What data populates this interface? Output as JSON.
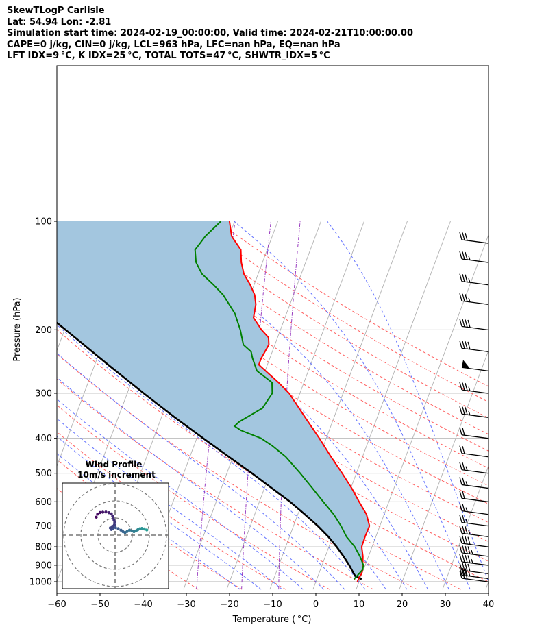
{
  "header": {
    "line1": "SkewTLogP Carlisle",
    "line2": "Lat: 54.94   Lon: -2.81",
    "line3": "Simulation start time: 2024-02-19_00:00:00, Valid time: 2024-02-21T10:00:00.00",
    "line4": "CAPE=0 j/kg, CIN=0 j/kg, LCL=963 hPa, LFC=nan hPa, EQ=nan hPa",
    "line5": "LFT IDX=9 °C, K IDX=25 °C, TOTAL TOTS=47 °C, SHWTR_IDX=5 °C"
  },
  "colors": {
    "temperature": "#ff0000",
    "dewpoint": "#008000",
    "parcel": "#000000",
    "cape_fill": "#a3c6df",
    "dry_adiabat": "#ff6060",
    "moist_adiabat": "#4a5cff",
    "mixing_ratio": "#9a3ec0",
    "isotherm": "#b0b0b0",
    "isobar": "#b0b0b0"
  },
  "chart_data": [
    {
      "type": "line",
      "subtype": "skew-T log-P diagram",
      "xlabel": "Temperature ( °C)",
      "ylabel": "Pressure (hPa)",
      "xlim": [
        -60,
        40
      ],
      "ylim": [
        1050,
        100
      ],
      "y_scale": "log",
      "x_ticks": [
        -60,
        -50,
        -40,
        -30,
        -20,
        -10,
        0,
        10,
        20,
        30,
        40
      ],
      "y_ticks": [
        1000,
        900,
        800,
        700,
        600,
        500,
        400,
        300,
        200,
        100
      ],
      "grid": true,
      "series": [
        {
          "key": "temperature",
          "points": [
            [
              1000,
              9.6
            ],
            [
              970,
              9.7
            ],
            [
              950,
              9.9
            ],
            [
              925,
              9.8
            ],
            [
              900,
              9.4
            ],
            [
              870,
              9.0
            ],
            [
              850,
              8.7
            ],
            [
              800,
              7.6
            ],
            [
              750,
              7.5
            ],
            [
              700,
              7.6
            ],
            [
              650,
              5.9
            ],
            [
              600,
              3.1
            ],
            [
              550,
              0.2
            ],
            [
              500,
              -3.3
            ],
            [
              450,
              -7.3
            ],
            [
              400,
              -11.6
            ],
            [
              350,
              -16.7
            ],
            [
              300,
              -22.5
            ],
            [
              280,
              -25.9
            ],
            [
              260,
              -29.9
            ],
            [
              250,
              -32.0
            ],
            [
              240,
              -32.0
            ],
            [
              230,
              -31.7
            ],
            [
              220,
              -31.4
            ],
            [
              210,
              -32.1
            ],
            [
              200,
              -34.4
            ],
            [
              185,
              -37.3
            ],
            [
              170,
              -37.9
            ],
            [
              160,
              -39.0
            ],
            [
              150,
              -40.9
            ],
            [
              140,
              -43.3
            ],
            [
              130,
              -44.9
            ],
            [
              120,
              -46.1
            ],
            [
              110,
              -49.4
            ],
            [
              100,
              -51.2
            ]
          ]
        },
        {
          "key": "dewpoint",
          "points": [
            [
              985,
              8.6
            ],
            [
              950,
              9.3
            ],
            [
              925,
              9.8
            ],
            [
              900,
              9.6
            ],
            [
              850,
              8.0
            ],
            [
              800,
              6.0
            ],
            [
              750,
              3.2
            ],
            [
              700,
              1.0
            ],
            [
              650,
              -1.7
            ],
            [
              600,
              -5.2
            ],
            [
              550,
              -8.9
            ],
            [
              500,
              -13.0
            ],
            [
              450,
              -17.8
            ],
            [
              420,
              -21.8
            ],
            [
              400,
              -25.1
            ],
            [
              380,
              -30.5
            ],
            [
              370,
              -32.3
            ],
            [
              360,
              -31.6
            ],
            [
              330,
              -27.4
            ],
            [
              300,
              -26.4
            ],
            [
              280,
              -27.4
            ],
            [
              260,
              -31.9
            ],
            [
              240,
              -34.0
            ],
            [
              230,
              -34.9
            ],
            [
              220,
              -37.3
            ],
            [
              200,
              -39.3
            ],
            [
              180,
              -42.0
            ],
            [
              160,
              -46.3
            ],
            [
              150,
              -49.4
            ],
            [
              140,
              -53.0
            ],
            [
              130,
              -55.4
            ],
            [
              120,
              -56.7
            ],
            [
              110,
              -55.5
            ],
            [
              100,
              -53.2
            ]
          ]
        },
        {
          "key": "parcel",
          "points": [
            [
              985,
              10.4
            ],
            [
              963,
              8.6
            ],
            [
              950,
              8.1
            ],
            [
              900,
              6.3
            ],
            [
              850,
              4.2
            ],
            [
              800,
              1.8
            ],
            [
              750,
              -1.0
            ],
            [
              700,
              -4.4
            ],
            [
              650,
              -8.4
            ],
            [
              600,
              -12.9
            ],
            [
              550,
              -18.3
            ],
            [
              500,
              -24.2
            ],
            [
              450,
              -31.0
            ],
            [
              400,
              -38.5
            ],
            [
              350,
              -46.9
            ],
            [
              300,
              -56.2
            ],
            [
              250,
              -66.9
            ],
            [
              200,
              -79.8
            ],
            [
              150,
              -96.5
            ],
            [
              100,
              -120.0
            ]
          ]
        }
      ],
      "wind_barbs_kt": [
        {
          "p": 1000,
          "speed": 30
        },
        {
          "p": 980,
          "speed": 35
        },
        {
          "p": 950,
          "speed": 40
        },
        {
          "p": 900,
          "speed": 45
        },
        {
          "p": 850,
          "speed": 45
        },
        {
          "p": 800,
          "speed": 40
        },
        {
          "p": 750,
          "speed": 35
        },
        {
          "p": 700,
          "speed": 25
        },
        {
          "p": 650,
          "speed": 25
        },
        {
          "p": 600,
          "speed": 20
        },
        {
          "p": 550,
          "speed": 25
        },
        {
          "p": 500,
          "speed": 25
        },
        {
          "p": 450,
          "speed": 20
        },
        {
          "p": 400,
          "speed": 20
        },
        {
          "p": 350,
          "speed": 35
        },
        {
          "p": 300,
          "speed": 35
        },
        {
          "p": 260,
          "speed": 50
        },
        {
          "p": 230,
          "speed": 40
        },
        {
          "p": 200,
          "speed": 40
        },
        {
          "p": 170,
          "speed": 35
        },
        {
          "p": 150,
          "speed": 35
        },
        {
          "p": 130,
          "speed": 35
        },
        {
          "p": 115,
          "speed": 30
        }
      ]
    },
    {
      "type": "scatter",
      "subtype": "hodograph",
      "title": "Wind Profile",
      "subtitle": "10m/s increment",
      "rings": [
        10,
        20,
        30
      ],
      "xlim": [
        -30,
        30
      ],
      "ylim": [
        -30,
        30
      ],
      "points_uv": [
        [
          30.5,
          3.0
        ],
        [
          29.0,
          3.6
        ],
        [
          27.6,
          3.9
        ],
        [
          26.4,
          3.7
        ],
        [
          25.2,
          3.1
        ],
        [
          24.2,
          2.4
        ],
        [
          23.0,
          2.0
        ],
        [
          21.8,
          2.4
        ],
        [
          20.4,
          2.9
        ],
        [
          19.0,
          2.1
        ],
        [
          17.8,
          1.5
        ],
        [
          16.6,
          2.0
        ],
        [
          15.4,
          2.9
        ],
        [
          13.8,
          3.8
        ],
        [
          12.2,
          4.4
        ],
        [
          10.8,
          4.0
        ],
        [
          9.8,
          3.3
        ],
        [
          9.2,
          4.2
        ],
        [
          10.4,
          5.1
        ],
        [
          11.6,
          6.1
        ],
        [
          11.8,
          7.4
        ],
        [
          11.4,
          8.6
        ],
        [
          10.8,
          9.8
        ],
        [
          10.6,
          11.1
        ],
        [
          9.8,
          12.4
        ],
        [
          8.4,
          13.1
        ],
        [
          6.6,
          13.5
        ],
        [
          4.8,
          13.4
        ],
        [
          3.2,
          13.2
        ],
        [
          1.8,
          12.3
        ],
        [
          1.0,
          10.5
        ]
      ]
    }
  ]
}
